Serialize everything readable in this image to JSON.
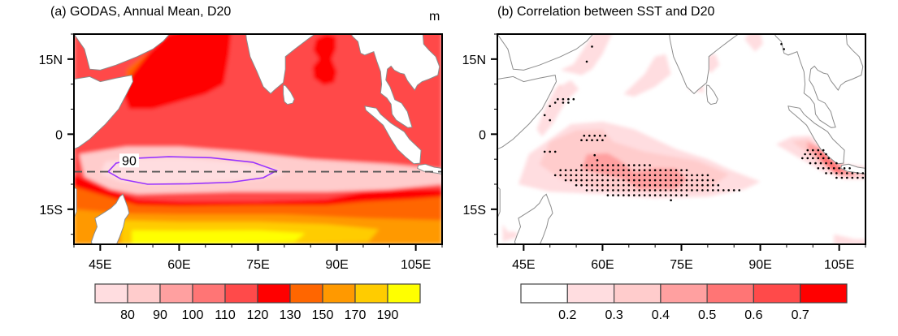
{
  "figure": {
    "units_label": "m"
  },
  "chart_data": [
    {
      "type": "heatmap",
      "panel": "a",
      "title": "(a) GODAS, Annual Mean, D20",
      "units": "m",
      "xlabel": "",
      "ylabel": "",
      "xlim": [
        40,
        110
      ],
      "ylim": [
        -22,
        20
      ],
      "x_ticks": [
        45,
        60,
        75,
        90,
        105
      ],
      "x_tick_labels": [
        "45E",
        "60E",
        "75E",
        "90E",
        "105E"
      ],
      "y_ticks": [
        15,
        0,
        -15
      ],
      "y_tick_labels": [
        "15N",
        "0",
        "15S"
      ],
      "colorbar": {
        "levels": [
          "80",
          "90",
          "100",
          "110",
          "120",
          "130",
          "150",
          "170",
          "190"
        ],
        "colors": [
          "#ffdde0",
          "#ffcccc",
          "#ffa0a0",
          "#ff7575",
          "#ff4a4a",
          "#ff0000",
          "#ff6600",
          "#ff9900",
          "#ffcc00",
          "#ffff00"
        ]
      },
      "contour_line": {
        "value": 90,
        "label": "90",
        "color": "#9933ff"
      },
      "reference_line": {
        "lat": -7.5,
        "style": "dashed",
        "color": "#555555"
      },
      "regions": [
        {
          "name": "background-ocean",
          "class": 4
        },
        {
          "name": "arabian-sea-deep",
          "class": 6
        },
        {
          "name": "arabian-sea-rim",
          "class": 5
        },
        {
          "name": "bay-of-bengal-core",
          "class": 5
        },
        {
          "name": "thermocline-ridge",
          "class": 1
        },
        {
          "name": "ridge-core",
          "class": 0
        },
        {
          "name": "south-band-red",
          "class": 5
        },
        {
          "name": "south-band-orange",
          "class": 6
        },
        {
          "name": "south-indian-ocean",
          "class": 7
        },
        {
          "name": "south-deep",
          "class": 8
        },
        {
          "name": "south-core",
          "class": 9
        }
      ]
    },
    {
      "type": "heatmap",
      "panel": "b",
      "title": "(b) Correlation between SST and D20",
      "xlabel": "",
      "ylabel": "",
      "xlim": [
        40,
        110
      ],
      "ylim": [
        -22,
        20
      ],
      "x_ticks": [
        45,
        60,
        75,
        90,
        105
      ],
      "x_tick_labels": [
        "45E",
        "60E",
        "75E",
        "90E",
        "105E"
      ],
      "y_ticks": [
        15,
        0,
        -15
      ],
      "y_tick_labels": [
        "15N",
        "0",
        "15S"
      ],
      "colorbar": {
        "levels": [
          "0.2",
          "0.3",
          "0.4",
          "0.5",
          "0.6",
          "0.7"
        ],
        "colors": [
          "#ffffff",
          "#ffdde0",
          "#ffcccc",
          "#ffa0a0",
          "#ff7575",
          "#ff4a4a",
          "#ff0000"
        ]
      },
      "significance_marker": "stippling (dots)",
      "regions": [
        {
          "name": "southwest-tio-patch",
          "max_class": 3,
          "stippled": true
        },
        {
          "name": "sumatra-java-coast",
          "max_class": 4,
          "stippled": true
        },
        {
          "name": "somali-coast",
          "max_class": 2,
          "stippled": true
        },
        {
          "name": "arabian-sea-north",
          "max_class": 1,
          "stippled": true
        },
        {
          "name": "bay-of-bengal-north",
          "max_class": 1,
          "stippled": true
        }
      ]
    }
  ]
}
